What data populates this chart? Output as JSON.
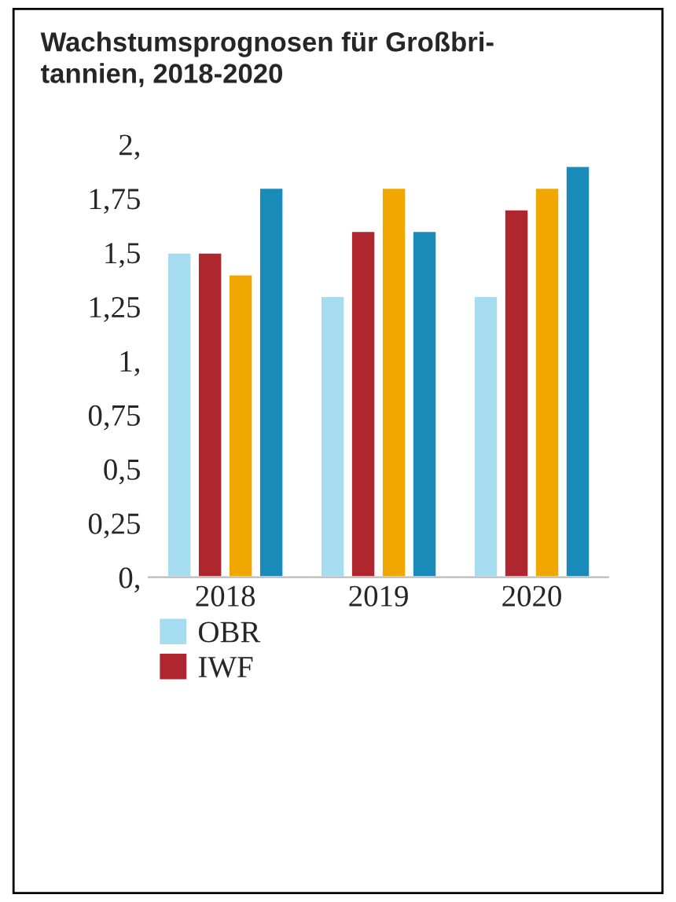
{
  "chart_data": {
    "type": "bar",
    "title": "Wachstumsprognosen für Großbri-\ntannien, 2018-2020",
    "categories": [
      "2018",
      "2019",
      "2020"
    ],
    "series": [
      {
        "name": "OBR",
        "color": "#a6dcef",
        "values": [
          1.5,
          1.3,
          1.3
        ]
      },
      {
        "name": "IWF",
        "color": "#b0262f",
        "values": [
          1.5,
          1.6,
          1.7
        ]
      },
      {
        "color": "#f0a800",
        "values": [
          1.4,
          1.8,
          1.8
        ]
      },
      {
        "color": "#1a8ab8",
        "values": [
          1.8,
          1.6,
          1.9
        ]
      }
    ],
    "ylim": [
      0,
      2
    ],
    "yticks": [
      {
        "value": 0,
        "label": "0,"
      },
      {
        "value": 0.25,
        "label": "0,25"
      },
      {
        "value": 0.5,
        "label": "0,5"
      },
      {
        "value": 0.75,
        "label": "0,75"
      },
      {
        "value": 1,
        "label": "1,"
      },
      {
        "value": 1.25,
        "label": "1,25"
      },
      {
        "value": 1.5,
        "label": "1,5"
      },
      {
        "value": 1.75,
        "label": "1,75"
      },
      {
        "value": 2,
        "label": "2,"
      }
    ],
    "grid": false,
    "legend": "bottom"
  }
}
